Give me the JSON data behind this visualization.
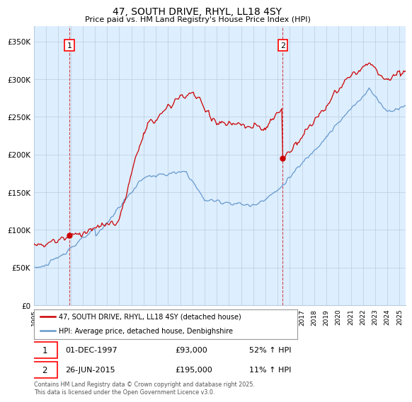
{
  "title1": "47, SOUTH DRIVE, RHYL, LL18 4SY",
  "title2": "Price paid vs. HM Land Registry's House Price Index (HPI)",
  "ylabel_ticks": [
    "£0",
    "£50K",
    "£100K",
    "£150K",
    "£200K",
    "£250K",
    "£300K",
    "£350K"
  ],
  "ytick_values": [
    0,
    50000,
    100000,
    150000,
    200000,
    250000,
    300000,
    350000
  ],
  "ylim": [
    0,
    370000
  ],
  "hpi_color": "#6699cc",
  "price_color": "#cc0000",
  "plot_bg": "#ddeeff",
  "bg_color": "#ffffff",
  "grid_color": "#bbccdd",
  "legend_line1": "47, SOUTH DRIVE, RHYL, LL18 4SY (detached house)",
  "legend_line2": "HPI: Average price, detached house, Denbighshire",
  "table_row1_num": "1",
  "table_row1_date": "01-DEC-1997",
  "table_row1_price": "£93,000",
  "table_row1_hpi": "52% ↑ HPI",
  "table_row2_num": "2",
  "table_row2_date": "26-JUN-2015",
  "table_row2_price": "£195,000",
  "table_row2_hpi": "11% ↑ HPI",
  "footnote": "Contains HM Land Registry data © Crown copyright and database right 2025.\nThis data is licensed under the Open Government Licence v3.0.",
  "marker1_year": 1997.917,
  "marker2_year": 2015.458,
  "marker1_price": 93000,
  "marker2_price": 195000
}
